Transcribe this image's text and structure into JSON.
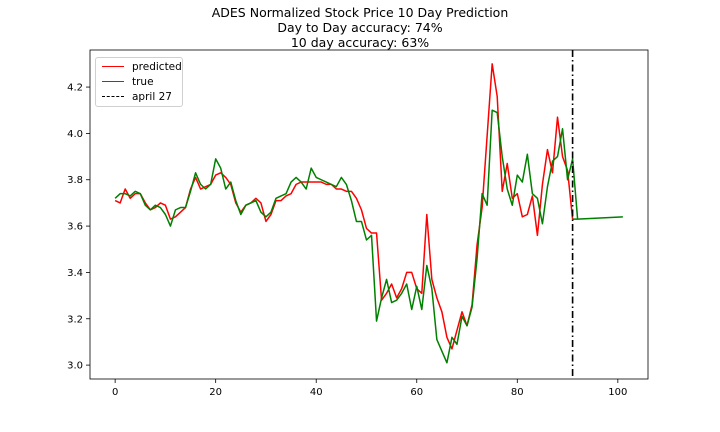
{
  "title_lines": [
    "ADES Normalized Stock Price 10 Day Prediction",
    "Day to Day accuracy: 74%",
    "10 day accuracy: 63%"
  ],
  "chart_data": {
    "type": "line",
    "xlim": [
      -5,
      106
    ],
    "ylim": [
      2.94,
      4.36
    ],
    "x_ticks": [
      0,
      20,
      40,
      60,
      80,
      100
    ],
    "y_ticks": [
      3.0,
      3.2,
      3.4,
      3.6,
      3.8,
      4.0,
      4.2
    ],
    "grid": false,
    "legend_location": "upper-left",
    "series": [
      {
        "name": "predicted",
        "color": "#ff0000",
        "style": "solid",
        "x_start": 0,
        "values": [
          3.71,
          3.7,
          3.76,
          3.72,
          3.74,
          3.74,
          3.7,
          3.67,
          3.68,
          3.7,
          3.69,
          3.63,
          3.64,
          3.66,
          3.68,
          3.76,
          3.81,
          3.76,
          3.77,
          3.78,
          3.82,
          3.83,
          3.81,
          3.78,
          3.7,
          3.66,
          3.69,
          3.7,
          3.72,
          3.7,
          3.62,
          3.65,
          3.71,
          3.71,
          3.73,
          3.74,
          3.78,
          3.79,
          3.79,
          3.79,
          3.79,
          3.79,
          3.78,
          3.78,
          3.76,
          3.76,
          3.75,
          3.75,
          3.72,
          3.67,
          3.59,
          3.57,
          3.57,
          3.28,
          3.31,
          3.35,
          3.29,
          3.33,
          3.4,
          3.4,
          3.33,
          3.31,
          3.65,
          3.37,
          3.29,
          3.23,
          3.12,
          3.07,
          3.15,
          3.23,
          3.17,
          3.26,
          3.52,
          3.68,
          3.99,
          4.3,
          4.16,
          3.75,
          3.87,
          3.72,
          3.74,
          3.64,
          3.65,
          3.73,
          3.56,
          3.78,
          3.93,
          3.83,
          4.07,
          3.9,
          3.84,
          3.63
        ]
      },
      {
        "name": "true",
        "color": "#008000",
        "style": "solid",
        "x_start": 0,
        "values": [
          3.72,
          3.74,
          3.74,
          3.73,
          3.75,
          3.74,
          3.69,
          3.67,
          3.69,
          3.68,
          3.65,
          3.6,
          3.67,
          3.68,
          3.68,
          3.75,
          3.83,
          3.78,
          3.76,
          3.78,
          3.89,
          3.85,
          3.76,
          3.79,
          3.71,
          3.65,
          3.69,
          3.7,
          3.71,
          3.66,
          3.64,
          3.66,
          3.72,
          3.73,
          3.74,
          3.79,
          3.81,
          3.79,
          3.76,
          3.85,
          3.81,
          3.8,
          3.79,
          3.78,
          3.77,
          3.81,
          3.78,
          3.71,
          3.62,
          3.62,
          3.54,
          3.56,
          3.19,
          3.29,
          3.37,
          3.27,
          3.28,
          3.31,
          3.35,
          3.24,
          3.34,
          3.24,
          3.43,
          3.33,
          3.11,
          3.06,
          3.01,
          3.12,
          3.09,
          3.21,
          3.17,
          3.25,
          3.46,
          3.74,
          3.69,
          4.1,
          4.09,
          3.9,
          3.76,
          3.69,
          3.82,
          3.79,
          3.91,
          3.74,
          3.72,
          3.61,
          3.77,
          3.88,
          3.9,
          4.02,
          3.8,
          3.89,
          3.63
        ]
      },
      {
        "name": "true",
        "color": "#008000",
        "style": "solid",
        "show_in_legend": false,
        "x": [
          91,
          92,
          101
        ],
        "y": [
          3.63,
          3.63,
          3.64
        ]
      }
    ],
    "vlines": [
      {
        "name": "april 27",
        "x": 91,
        "color": "#000000",
        "style": "dashdot"
      }
    ]
  },
  "legend": [
    {
      "label": "predicted",
      "color": "#ff0000",
      "style": "solid"
    },
    {
      "label": "true",
      "color": "#008000",
      "style": "solid"
    },
    {
      "label": "april 27",
      "color": "#000000",
      "style": "dashdot"
    }
  ]
}
